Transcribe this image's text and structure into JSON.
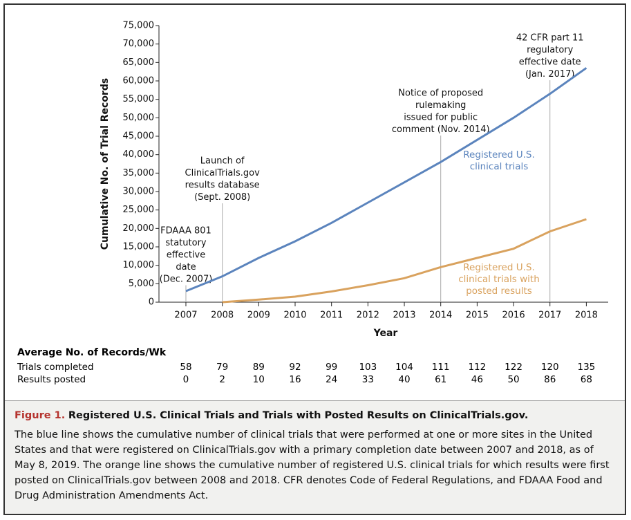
{
  "chart_data": {
    "type": "line",
    "y_label": "Cumulative No. of Trial Records",
    "x_label": "Year",
    "x": [
      2007,
      2008,
      2009,
      2010,
      2011,
      2012,
      2013,
      2014,
      2015,
      2016,
      2017,
      2018
    ],
    "series": [
      {
        "name": "Registered U.S. clinical trials",
        "color": "#5b84bd",
        "values": [
          3000,
          7000,
          12000,
          16500,
          21500,
          27000,
          32500,
          38000,
          44000,
          50000,
          56500,
          63500
        ]
      },
      {
        "name": "Registered U.S. clinical trials with posted results",
        "color": "#d9a25e",
        "values": [
          null,
          0,
          700,
          1500,
          2900,
          4600,
          6500,
          9500,
          12000,
          14500,
          19200,
          22500
        ]
      }
    ],
    "xlim": [
      2006.26,
      2018.6
    ],
    "ylim": [
      0,
      75000
    ],
    "xticks": [
      2007,
      2008,
      2009,
      2010,
      2011,
      2012,
      2013,
      2014,
      2015,
      2016,
      2017,
      2018
    ],
    "yticks": [
      0,
      {
        "value": 5000,
        "label": "5,000"
      },
      {
        "value": 10000,
        "label": "10,000"
      },
      {
        "value": 15000,
        "label": "15,000"
      },
      {
        "value": 20000,
        "label": "20,000"
      },
      {
        "value": 25000,
        "label": "25,000"
      },
      {
        "value": 30000,
        "label": "30,000"
      },
      {
        "value": 35000,
        "label": "35,000"
      },
      {
        "value": 40000,
        "label": "40,000"
      },
      {
        "value": 45000,
        "label": "45,000"
      },
      {
        "value": 50000,
        "label": "50,000"
      },
      {
        "value": 55000,
        "label": "55,000"
      },
      {
        "value": 60000,
        "label": "60,000"
      },
      {
        "value": 65000,
        "label": "65,000"
      },
      {
        "value": 70000,
        "label": "70,000"
      },
      {
        "value": 75000,
        "label": "75,000"
      }
    ],
    "annotations": [
      {
        "x": 2007,
        "text": [
          "FDAAA 801",
          "statutory",
          "effective",
          "date",
          "(Dec. 2007)"
        ]
      },
      {
        "x": 2008,
        "text": [
          "Launch of",
          "ClinicalTrials.gov",
          "results database",
          "(Sept. 2008)"
        ]
      },
      {
        "x": 2014,
        "text": [
          "Notice of proposed",
          "rulemaking",
          "issued for public",
          "comment (Nov. 2014)"
        ]
      },
      {
        "x": 2017,
        "text": [
          "42 CFR part 11",
          "regulatory",
          "effective date",
          "(Jan. 2017)"
        ]
      }
    ]
  },
  "table": {
    "title": "Average No. of Records/Wk",
    "rows": [
      {
        "label": "Trials completed",
        "values": [
          58,
          79,
          89,
          92,
          99,
          103,
          104,
          111,
          112,
          122,
          120,
          135
        ]
      },
      {
        "label": "Results posted",
        "values": [
          0,
          2,
          10,
          16,
          24,
          33,
          40,
          61,
          46,
          50,
          86,
          68
        ]
      }
    ]
  },
  "caption": {
    "figure": "Figure 1.",
    "title": "Registered U.S. Clinical Trials and Trials with Posted Results on ClinicalTrials.gov.",
    "body": "The blue line shows the cumulative number of clinical trials that were performed at one or more sites in the United States and that were registered on ClinicalTrials.gov with a primary completion date between 2007 and 2018, as of May 8, 2019. The orange line shows the cumulative number of registered U.S. clinical trials for which results were first posted on ClinicalTrials.gov between 2008 and 2018. CFR denotes Code of Federal Regulations, and FDAAA Food and Drug Administration Amendments Act."
  }
}
